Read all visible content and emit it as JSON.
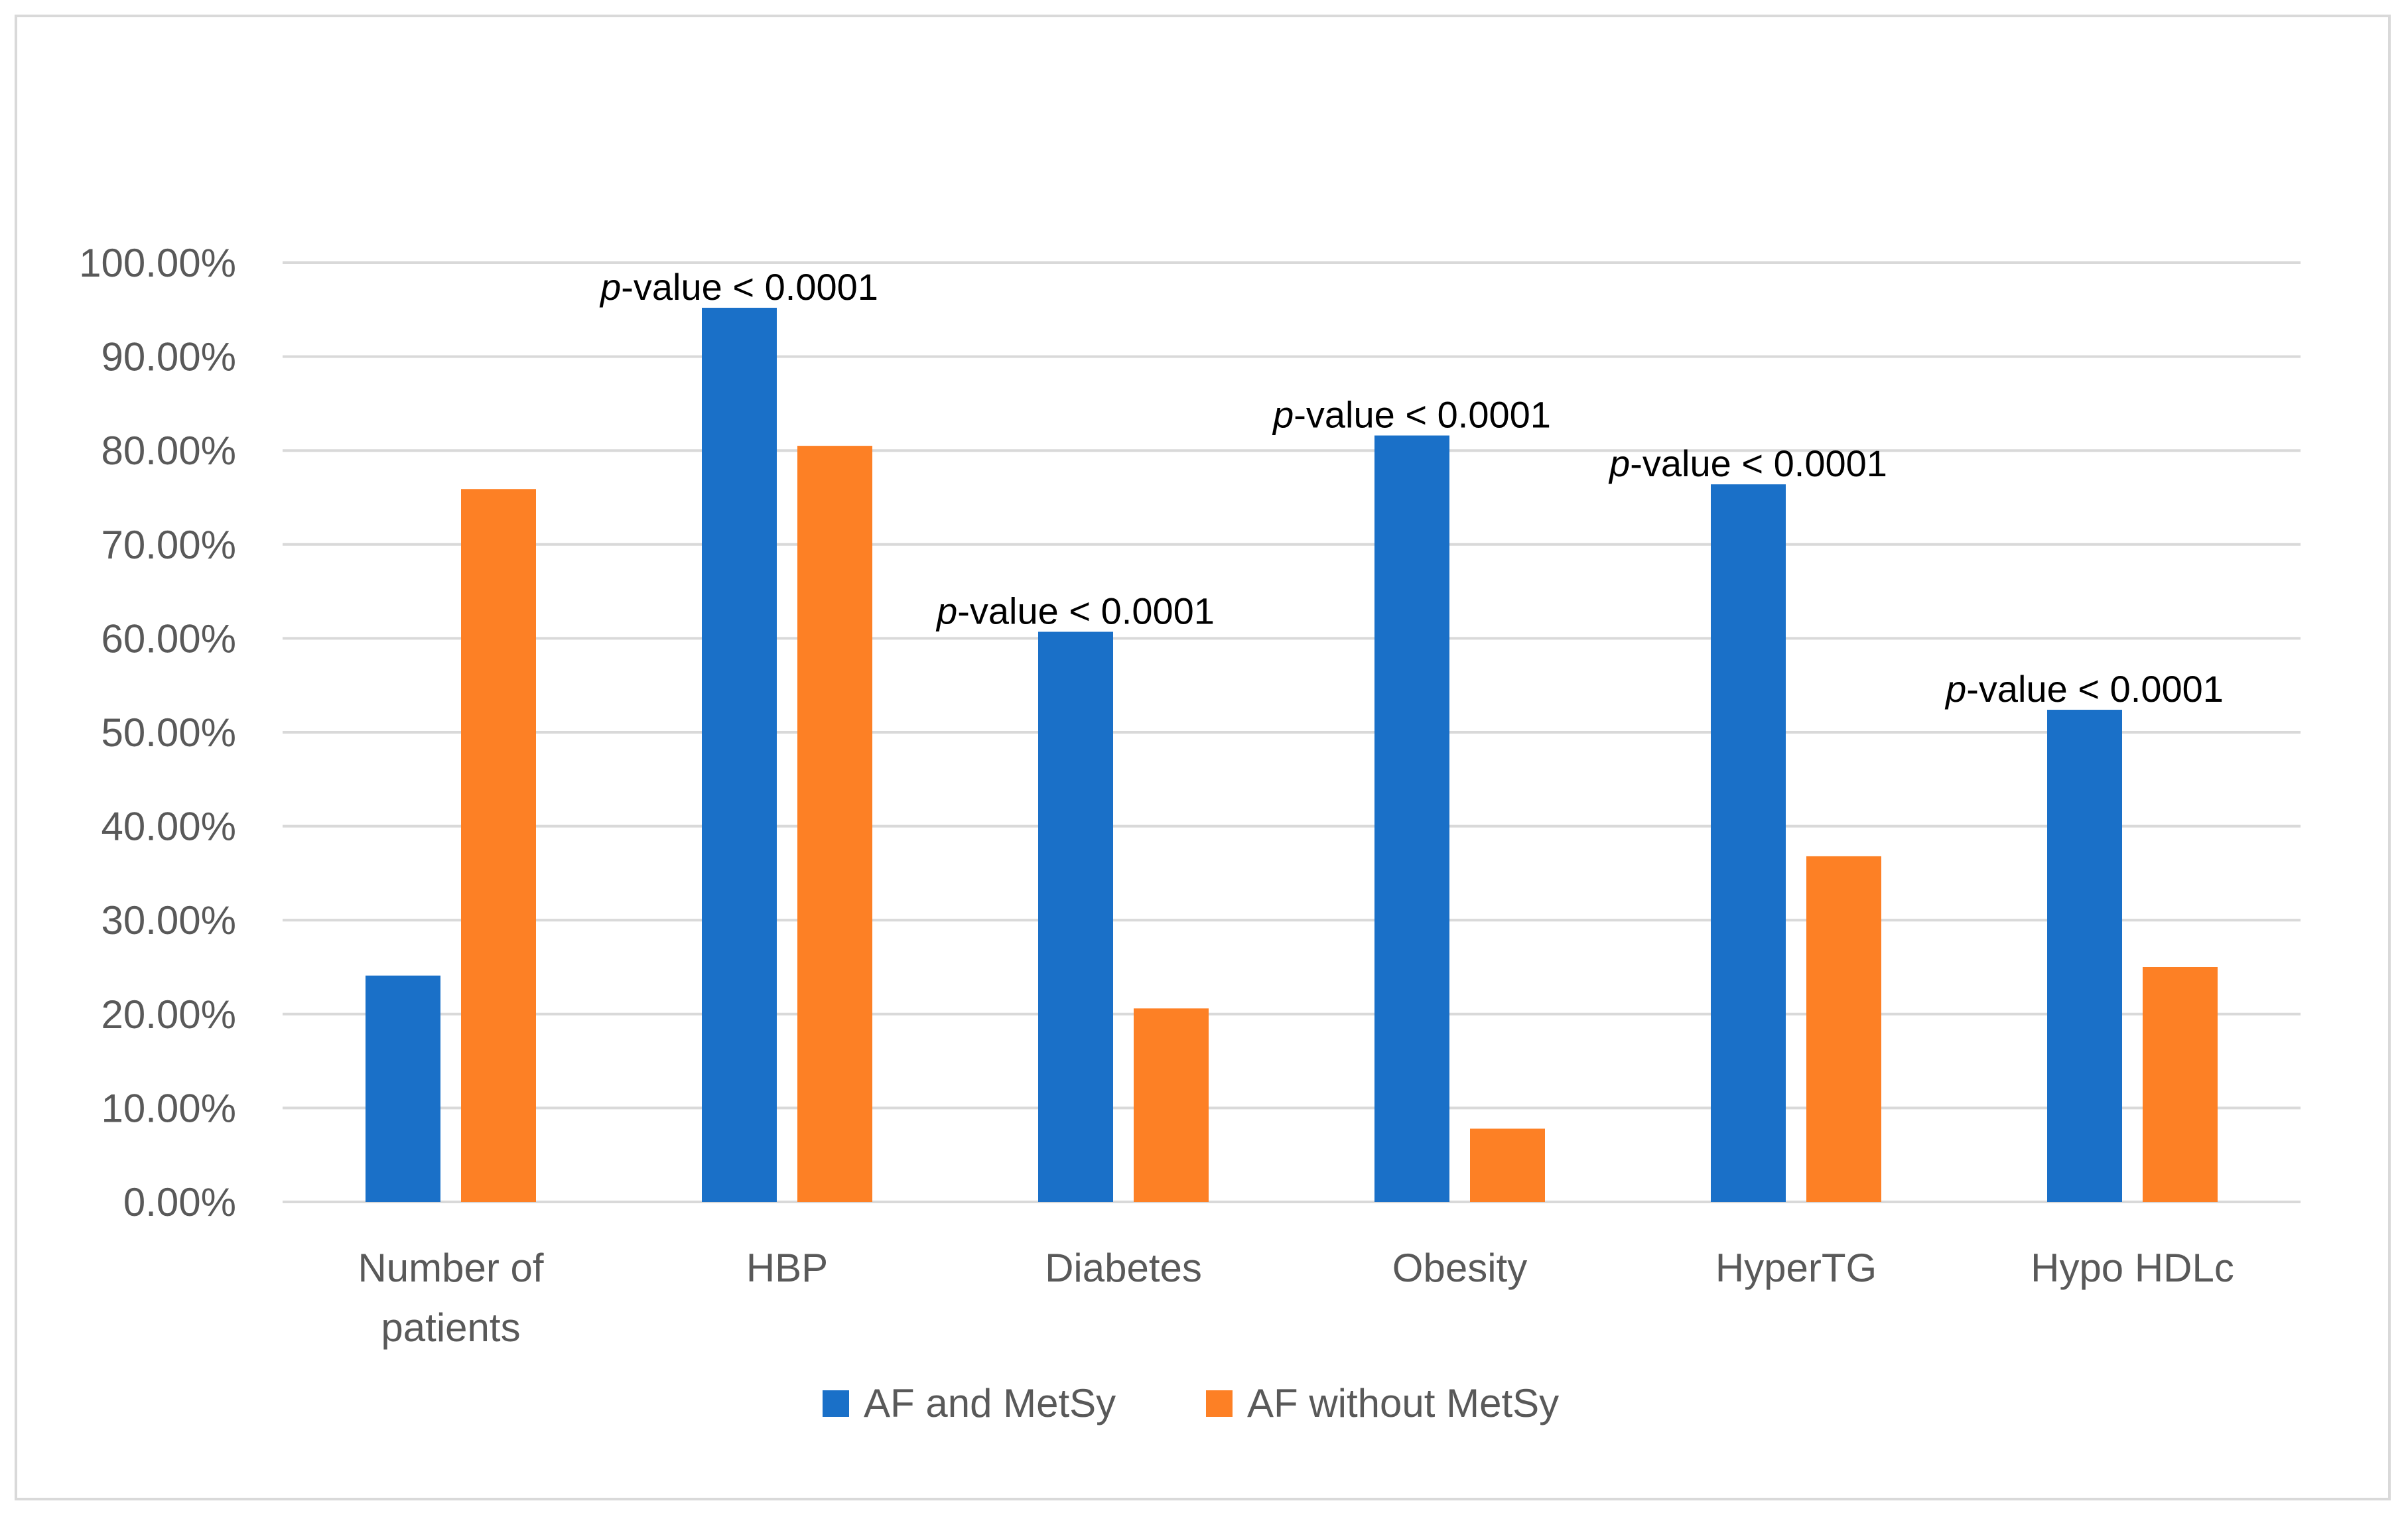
{
  "chart_data": {
    "type": "bar",
    "title": "",
    "xlabel": "",
    "ylabel": "",
    "ylim": [
      0,
      100
    ],
    "ytick_step": 10,
    "ytick_labels": [
      "0.00%",
      "10.00%",
      "20.00%",
      "30.00%",
      "40.00%",
      "50.00%",
      "60.00%",
      "70.00%",
      "80.00%",
      "90.00%",
      "100.00%"
    ],
    "grid": true,
    "legend_position": "bottom",
    "categories": [
      [
        "Number of",
        "patients"
      ],
      [
        "HBP"
      ],
      [
        "Diabetes"
      ],
      [
        "Obesity"
      ],
      [
        "HyperTG"
      ],
      [
        "Hypo HDLc"
      ]
    ],
    "series": [
      {
        "name": "AF and MetSy",
        "color": "#1a70c8",
        "values": [
          24.1,
          95.2,
          60.7,
          81.6,
          76.4,
          52.4
        ]
      },
      {
        "name": "AF without MetSy",
        "color": "#fd8025",
        "values": [
          75.9,
          80.5,
          20.6,
          7.8,
          36.8,
          25.0
        ]
      }
    ],
    "annotations": [
      {
        "category_index": 1,
        "italic": "p",
        "text": "-value < 0.0001"
      },
      {
        "category_index": 2,
        "italic": "p",
        "text": "-value < 0.0001"
      },
      {
        "category_index": 3,
        "italic": "p",
        "text": "-value < 0.0001"
      },
      {
        "category_index": 4,
        "italic": "p",
        "text": "-value < 0.0001"
      },
      {
        "category_index": 5,
        "italic": "p",
        "text": "-value < 0.0001"
      }
    ],
    "gridline_color": "#d9d9d9",
    "axis_text_color": "#595959"
  }
}
